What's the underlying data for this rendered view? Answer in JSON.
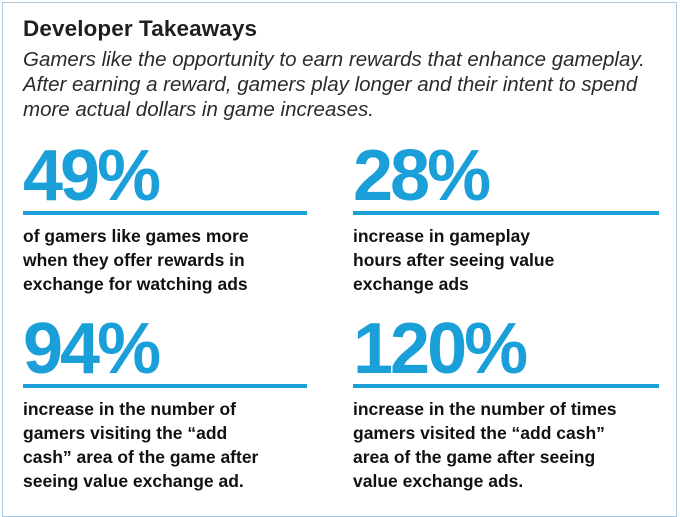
{
  "header": {
    "title": "Developer Takeaways",
    "intro": "Gamers like the opportunity to earn rewards that enhance gameplay. After earning a reward, gamers play longer and their intent to spend more actual dollars in game increases."
  },
  "stats": [
    {
      "value": "49%",
      "description": "of gamers like games more\nwhen they offer rewards in\nexchange for watching ads"
    },
    {
      "value": "28%",
      "description": "increase in gameplay\nhours after seeing value\nexchange ads"
    },
    {
      "value": "94%",
      "description": "increase in the number of\ngamers visiting the “add\ncash” area of the game after\nseeing  value exchange ad."
    },
    {
      "value": "120%",
      "description": "increase in the number of times\ngamers visited the “add cash”\narea of the game after seeing\nvalue exchange ads."
    }
  ],
  "colors": {
    "accent": "#1a9fd9",
    "frame_border": "#a9c9e2",
    "heading_text": "#1f1f1f",
    "body_text": "#111111"
  }
}
